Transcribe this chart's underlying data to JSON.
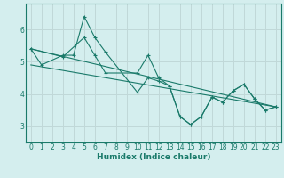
{
  "xlabel": "Humidex (Indice chaleur)",
  "ylabel": "",
  "xlim": [
    -0.5,
    23.5
  ],
  "ylim": [
    2.5,
    6.8
  ],
  "xticks": [
    0,
    1,
    2,
    3,
    4,
    5,
    6,
    7,
    8,
    9,
    10,
    11,
    12,
    13,
    14,
    15,
    16,
    17,
    18,
    19,
    20,
    21,
    22,
    23
  ],
  "yticks": [
    3,
    4,
    5,
    6
  ],
  "background_color": "#d4eeee",
  "grid_color": "#c0d8d8",
  "line_color": "#1a7a6a",
  "lines": [
    {
      "x": [
        0,
        1,
        3,
        4,
        5,
        6,
        7,
        10,
        11,
        12,
        13,
        14,
        15,
        16,
        17,
        18,
        19,
        20,
        21,
        22,
        23
      ],
      "y": [
        5.4,
        4.9,
        5.2,
        5.2,
        6.4,
        5.75,
        5.3,
        4.05,
        4.5,
        4.4,
        4.25,
        3.3,
        3.05,
        3.3,
        3.9,
        3.75,
        4.1,
        4.3,
        3.85,
        3.5,
        3.6
      ],
      "with_markers": true
    },
    {
      "x": [
        0,
        3,
        5,
        6,
        7,
        10,
        11,
        12,
        13,
        14,
        15,
        16,
        17,
        18,
        19,
        20,
        21,
        22,
        23
      ],
      "y": [
        5.4,
        5.15,
        5.75,
        5.2,
        4.65,
        4.65,
        5.2,
        4.5,
        4.25,
        3.3,
        3.05,
        3.3,
        3.9,
        3.75,
        4.1,
        4.3,
        3.85,
        3.5,
        3.6
      ],
      "with_markers": true
    },
    {
      "x": [
        0,
        23
      ],
      "y": [
        5.4,
        3.6
      ],
      "with_markers": false
    },
    {
      "x": [
        0,
        23
      ],
      "y": [
        4.9,
        3.6
      ],
      "with_markers": false
    }
  ]
}
